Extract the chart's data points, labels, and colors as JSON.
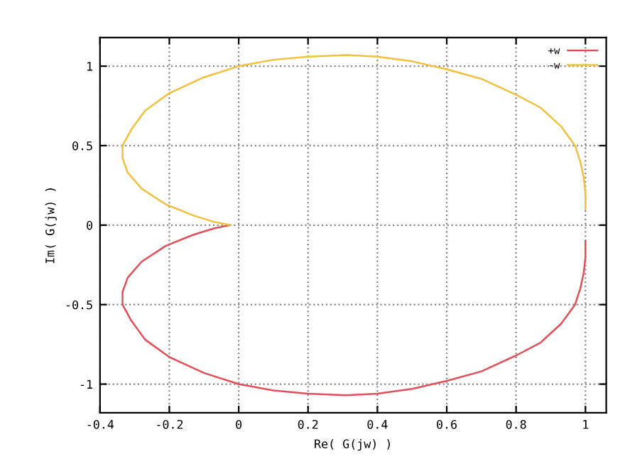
{
  "chart_data": {
    "type": "line",
    "xlabel": "Re( G(jw) )",
    "ylabel": "Im( G(jw) )",
    "xlim": [
      -0.4,
      1.06
    ],
    "ylim": [
      -1.18,
      1.18
    ],
    "xticks": [
      -0.4,
      -0.2,
      0,
      0.2,
      0.4,
      0.6,
      0.8,
      1
    ],
    "yticks": [
      -1,
      -0.5,
      0,
      0.5,
      1
    ],
    "grid": true,
    "legend": "top right",
    "line_style": "solid",
    "marker": "none",
    "series": [
      {
        "name": "+w",
        "color": "#e0505a",
        "x": [
          1,
          1,
          0.995,
          0.985,
          0.97,
          0.93,
          0.87,
          0.8,
          0.7,
          0.6,
          0.5,
          0.4,
          0.31,
          0.2,
          0.1,
          0,
          -0.1,
          -0.2,
          -0.27,
          -0.31,
          -0.335,
          -0.335,
          -0.32,
          -0.28,
          -0.21,
          -0.13,
          -0.07,
          -0.025
        ],
        "values": [
          -0.1,
          -0.2,
          -0.3,
          -0.4,
          -0.5,
          -0.62,
          -0.74,
          -0.82,
          -0.92,
          -0.98,
          -1.03,
          -1.06,
          -1.07,
          -1.06,
          -1.04,
          -1.0,
          -0.93,
          -0.83,
          -0.72,
          -0.6,
          -0.5,
          -0.42,
          -0.33,
          -0.23,
          -0.13,
          -0.06,
          -0.02,
          0
        ]
      },
      {
        "name": "-w",
        "color": "#f0c040",
        "x": [
          1,
          1,
          0.995,
          0.985,
          0.97,
          0.93,
          0.87,
          0.8,
          0.7,
          0.6,
          0.5,
          0.4,
          0.31,
          0.2,
          0.1,
          0,
          -0.1,
          -0.2,
          -0.27,
          -0.31,
          -0.335,
          -0.335,
          -0.32,
          -0.28,
          -0.21,
          -0.13,
          -0.07,
          -0.025
        ],
        "values": [
          0.1,
          0.2,
          0.3,
          0.4,
          0.5,
          0.62,
          0.74,
          0.82,
          0.92,
          0.98,
          1.03,
          1.06,
          1.07,
          1.06,
          1.04,
          1.0,
          0.93,
          0.83,
          0.72,
          0.6,
          0.5,
          0.42,
          0.33,
          0.23,
          0.13,
          0.06,
          0.02,
          0
        ]
      }
    ]
  }
}
